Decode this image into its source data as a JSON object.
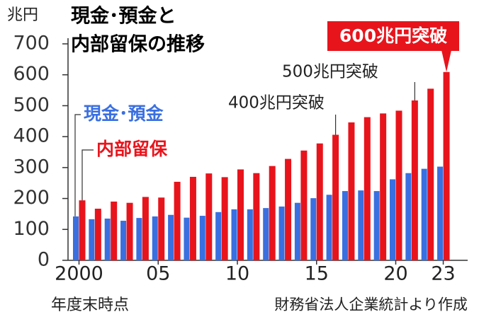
{
  "chart_data": {
    "type": "bar",
    "title": [
      "現金･預金と",
      "内部留保の推移"
    ],
    "y_unit": "兆円",
    "x_label": "年度末時点",
    "source": "財務省法人企業統計より作成",
    "categories": [
      "2000",
      null,
      null,
      null,
      null,
      "05",
      null,
      null,
      null,
      null,
      "10",
      null,
      null,
      null,
      null,
      "15",
      null,
      null,
      null,
      null,
      "20",
      null,
      null,
      "23"
    ],
    "series": [
      {
        "name": "現金･預金",
        "color": "#3a6fe0",
        "values": [
          142,
          133,
          135,
          128,
          137,
          142,
          147,
          138,
          144,
          156,
          165,
          165,
          169,
          174,
          186,
          201,
          212,
          224,
          226,
          224,
          262,
          282,
          296,
          303
        ]
      },
      {
        "name": "内部留保",
        "color": "#e8141c",
        "values": [
          194,
          167,
          190,
          186,
          205,
          203,
          254,
          270,
          281,
          269,
          294,
          282,
          305,
          328,
          355,
          378,
          406,
          446,
          463,
          475,
          484,
          517,
          555,
          609
        ]
      }
    ],
    "annotations": [
      "400兆円突破",
      "500兆円突破",
      "600兆円突破"
    ],
    "ylim": [
      0,
      700
    ],
    "yticks": [
      0,
      100,
      200,
      300,
      400,
      500,
      600,
      700
    ],
    "grid": false
  }
}
